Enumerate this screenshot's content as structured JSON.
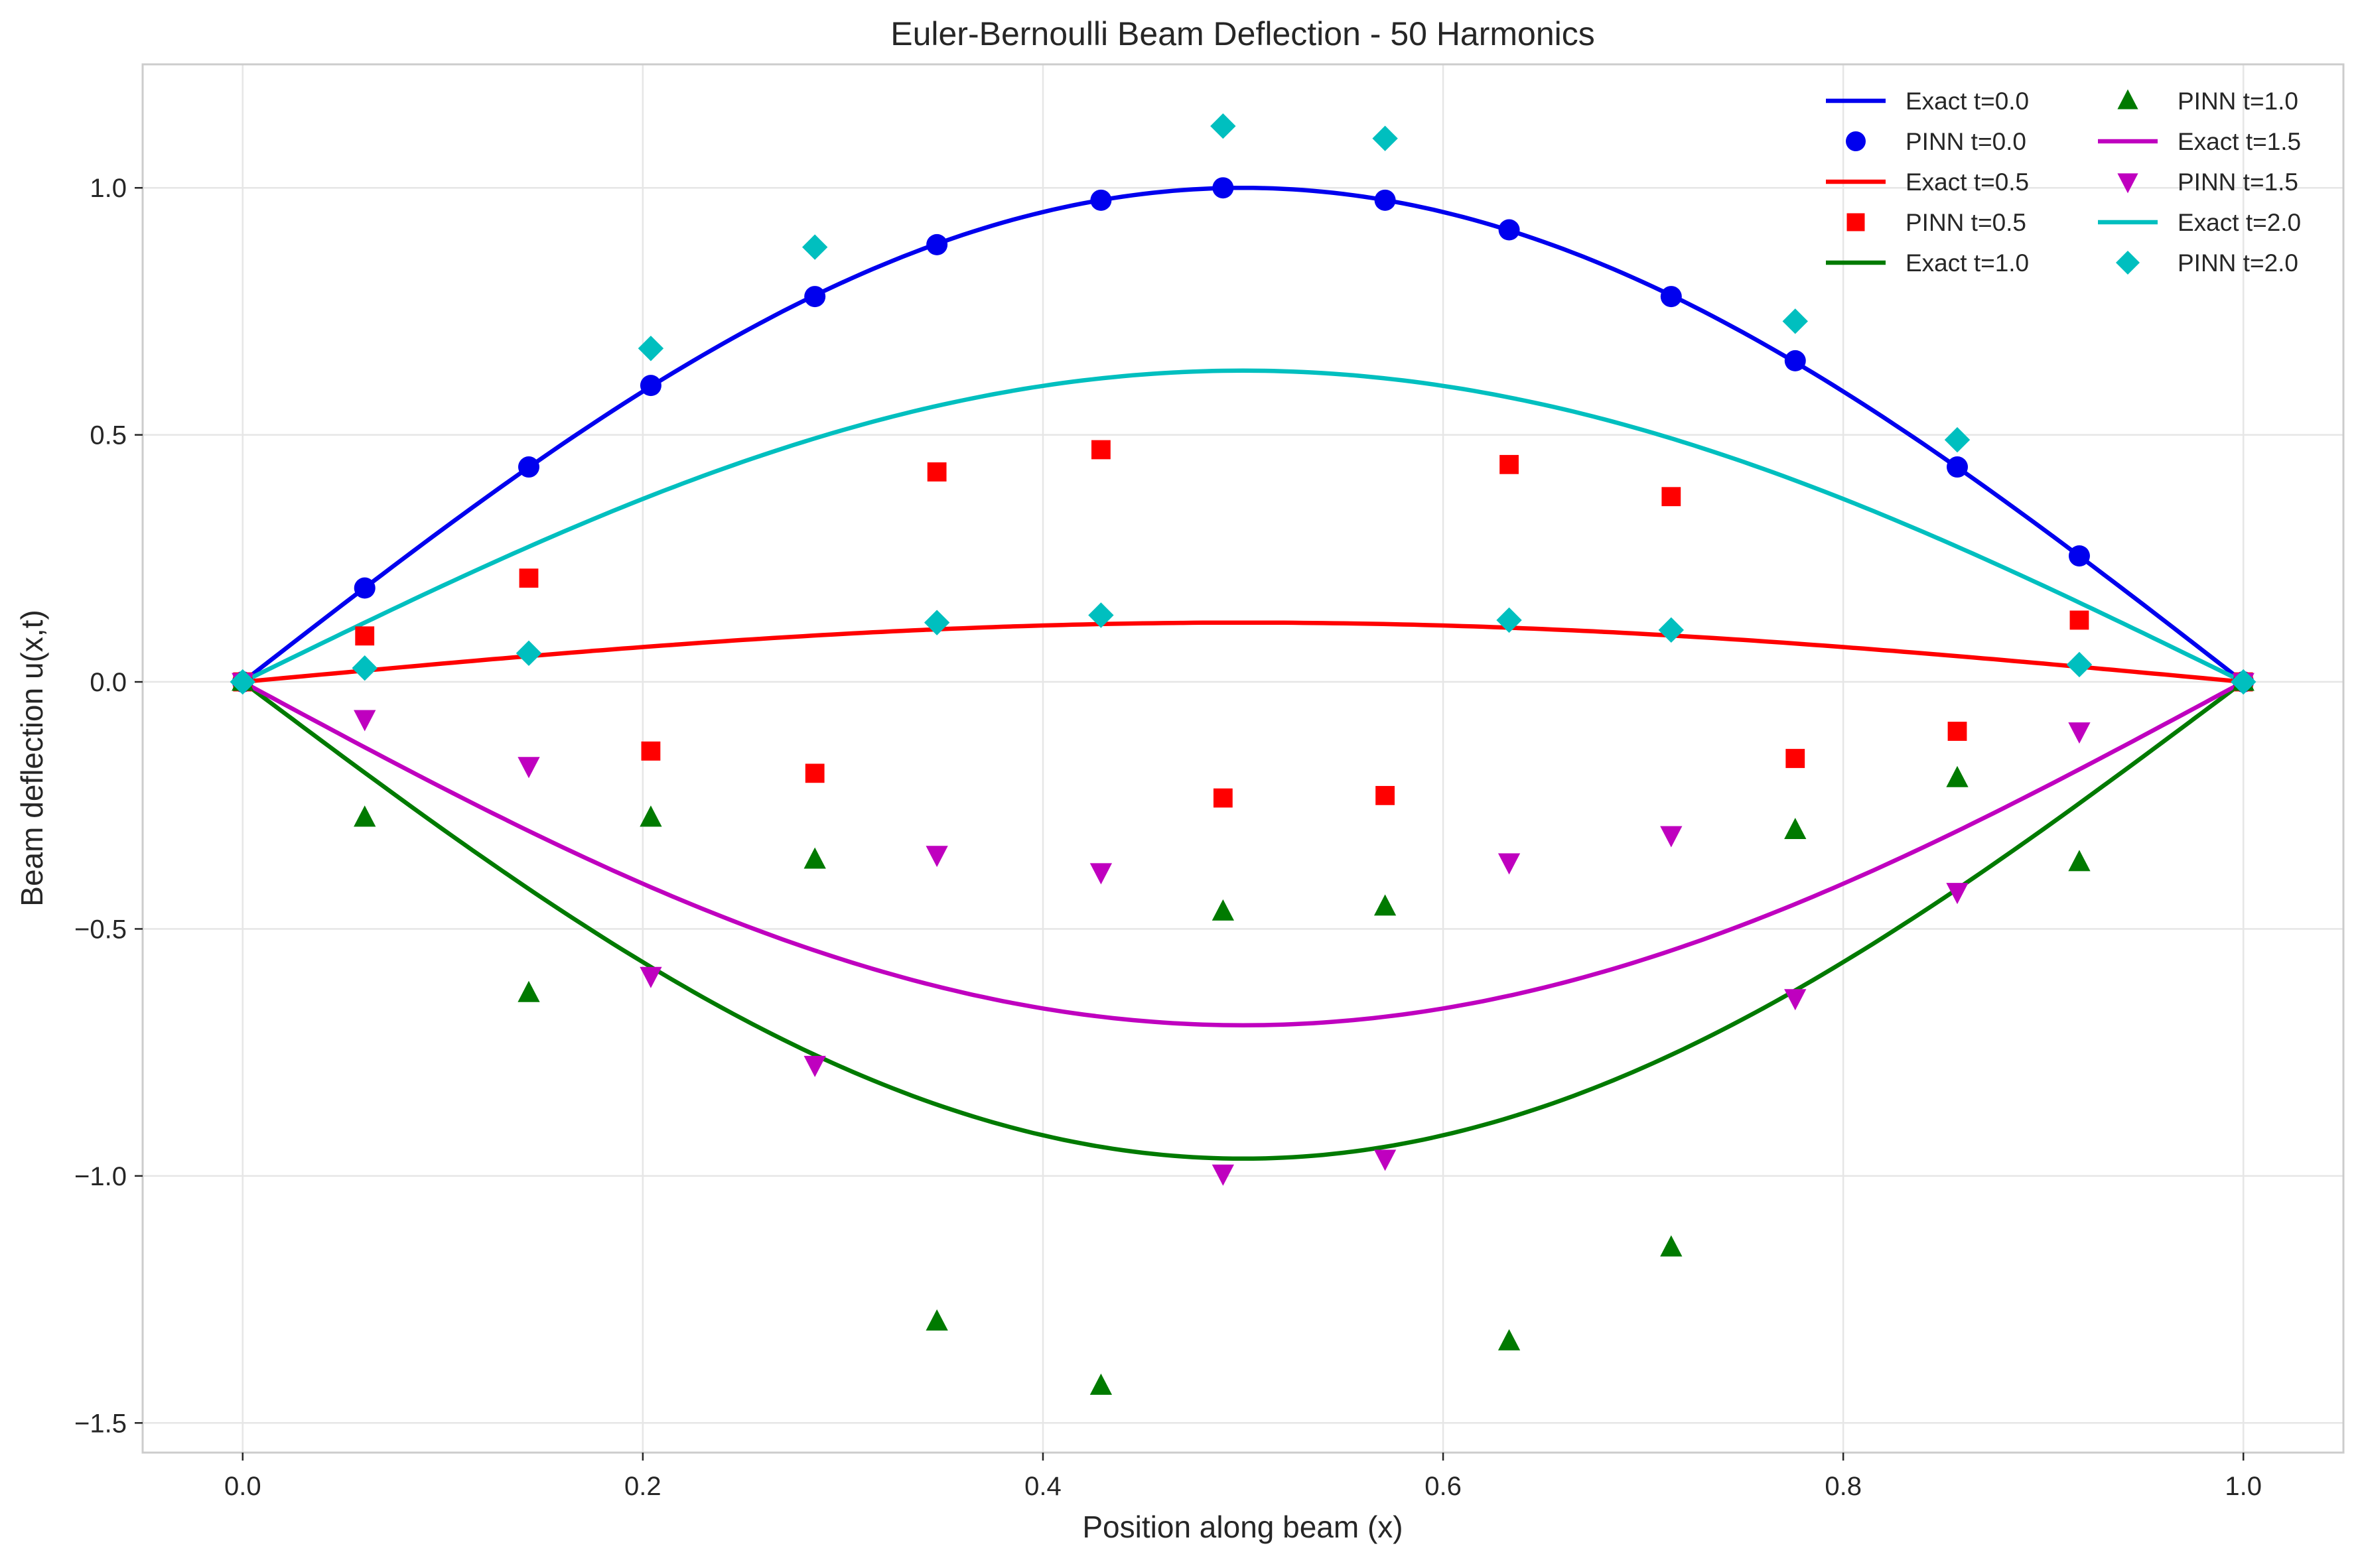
{
  "chart_data": {
    "type": "line",
    "title": "Euler-Bernoulli Beam Deflection - 50 Harmonics",
    "xlabel": "Position along beam (x)",
    "ylabel": "Beam deflection u(x,t)",
    "xlim": [
      -0.05,
      1.05
    ],
    "ylim": [
      -1.56,
      1.25
    ],
    "x_ticks": [
      0.0,
      0.2,
      0.4,
      0.6,
      0.8,
      1.0
    ],
    "x_tick_labels": [
      "0.0",
      "0.2",
      "0.4",
      "0.6",
      "0.8",
      "1.0"
    ],
    "y_ticks": [
      1.0,
      0.5,
      0.0,
      -0.5,
      -1.0,
      -1.5
    ],
    "y_tick_labels": [
      "1.0",
      "0.5",
      "0.0",
      "−0.5",
      "−1.0",
      "−1.5"
    ],
    "grid": true,
    "legend_position": "top-right",
    "legend_columns": 2,
    "exact_series": [
      {
        "name": "Exact t=0.0",
        "color": "#0000ee",
        "amplitude": 1.0
      },
      {
        "name": "Exact t=0.5",
        "color": "#ff0000",
        "amplitude": 0.12
      },
      {
        "name": "Exact t=1.0",
        "color": "#007a00",
        "amplitude": -0.965
      },
      {
        "name": "Exact t=1.5",
        "color": "#bf00bf",
        "amplitude": -0.695
      },
      {
        "name": "Exact t=2.0",
        "color": "#00bfbf",
        "amplitude": 0.63
      }
    ],
    "pinn_x": [
      0.0,
      0.061,
      0.143,
      0.204,
      0.286,
      0.347,
      0.429,
      0.49,
      0.571,
      0.633,
      0.714,
      0.776,
      0.857,
      0.918,
      1.0
    ],
    "pinn_series": [
      {
        "name": "PINN t=0.0",
        "color": "#0000ee",
        "marker": "circle",
        "y": [
          0.0,
          0.19,
          0.435,
          0.6,
          0.78,
          0.885,
          0.975,
          1.0,
          0.975,
          0.915,
          0.78,
          0.65,
          0.435,
          0.255,
          0.0
        ]
      },
      {
        "name": "PINN t=0.5",
        "color": "#ff0000",
        "marker": "square",
        "y": [
          0.0,
          0.093,
          0.21,
          -0.14,
          -0.185,
          0.425,
          0.47,
          -0.235,
          -0.23,
          0.44,
          0.375,
          -0.155,
          -0.1,
          0.125,
          0.0
        ]
      },
      {
        "name": "PINN t=1.0",
        "color": "#007a00",
        "marker": "triangle-up",
        "y": [
          0.0,
          -0.275,
          -0.63,
          -0.275,
          -0.36,
          -1.295,
          -1.425,
          -0.465,
          -0.455,
          -1.335,
          -1.145,
          -0.3,
          -0.195,
          -0.365,
          0.0
        ]
      },
      {
        "name": "PINN t=1.5",
        "color": "#bf00bf",
        "marker": "triangle-down",
        "y": [
          0.0,
          -0.075,
          -0.17,
          -0.595,
          -0.775,
          -0.35,
          -0.385,
          -0.995,
          -0.965,
          -0.365,
          -0.31,
          -0.64,
          -0.425,
          -0.1,
          0.0
        ]
      },
      {
        "name": "PINN t=2.0",
        "color": "#00bfbf",
        "marker": "diamond",
        "y": [
          0.0,
          0.028,
          0.058,
          0.675,
          0.88,
          0.12,
          0.135,
          1.125,
          1.1,
          0.125,
          0.105,
          0.73,
          0.49,
          0.035,
          0.0
        ]
      }
    ]
  }
}
